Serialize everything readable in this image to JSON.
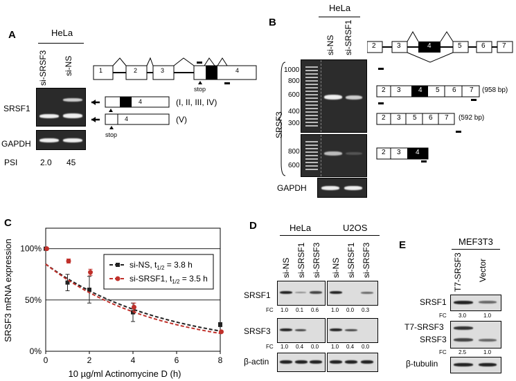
{
  "panelA": {
    "letter": "A",
    "cell": "HeLa",
    "lanes": [
      "si-SRSF3",
      "si-NS"
    ],
    "row1": "SRSF1",
    "row2": "GAPDH",
    "psi_label": "PSI",
    "psi_values": [
      "2.0",
      "45"
    ],
    "isoform1": "(I, II, III, IV)",
    "isoform2": "(V)",
    "stop": "stop",
    "exons": [
      "1",
      "2",
      "3",
      "4"
    ],
    "exon4": "4"
  },
  "panelB": {
    "letter": "B",
    "cell": "HeLa",
    "lanes": [
      "si-NS",
      "si-SRSF1"
    ],
    "row_label": "SRSF3",
    "gapdh": "GAPDH",
    "ladder_top": [
      "1000",
      "800",
      "600",
      "400",
      "300"
    ],
    "ladder_bottom": [
      "800",
      "600"
    ],
    "gene_exons": [
      "2",
      "3",
      "4",
      "5",
      "6",
      "7"
    ],
    "iso_full": [
      "2",
      "3",
      "4",
      "5",
      "6",
      "7"
    ],
    "iso_full_size": "(958 bp)",
    "iso_skip": [
      "2",
      "3",
      "5",
      "6",
      "7"
    ],
    "iso_skip_size": "(592 bp)",
    "iso_short": [
      "2",
      "3",
      "4"
    ]
  },
  "panelC": {
    "letter": "C",
    "chart_data": {
      "type": "line",
      "ylabel": "SRSF3 mRNA expression",
      "xlabel": "10 µg/ml Actinomycine D (h)",
      "x_ticks": [
        "0",
        "2",
        "4",
        "6",
        "8"
      ],
      "y_ticks": [
        "0%",
        "50%",
        "100%"
      ],
      "xlim": [
        0,
        8
      ],
      "ylim": [
        0,
        120
      ],
      "series": [
        {
          "name": "si-NS, t1/2 = 3.8 h",
          "x": [
            0,
            1,
            2,
            4,
            8
          ],
          "y": [
            100,
            67,
            60,
            38,
            26
          ],
          "err": [
            0,
            8,
            13,
            9,
            2
          ],
          "color": "#222222"
        },
        {
          "name": "si-SRSF1, t1/2 = 3.5 h",
          "x": [
            0,
            1,
            2,
            4,
            8
          ],
          "y": [
            100,
            88,
            77,
            43,
            19
          ],
          "err": [
            0,
            2,
            3,
            4,
            1
          ],
          "color": "#c0302a"
        }
      ],
      "legend": [
        {
          "prefix": "si-NS, t",
          "sub": "1/2",
          "suffix": " = 3.8 h"
        },
        {
          "prefix": "si-SRSF1, t",
          "sub": "1/2",
          "suffix": " = 3.5 h"
        }
      ],
      "legend_position": "top-right"
    }
  },
  "panelD": {
    "letter": "D",
    "cells": [
      "HeLa",
      "U2OS"
    ],
    "lanes": [
      "si-NS",
      "si-SRSF1",
      "si-SRSF3"
    ],
    "rows": [
      "SRSF1",
      "SRSF3",
      "β-actin"
    ],
    "fc_label": "FC",
    "fc_srsf1_hela": [
      "1.0",
      "0.1",
      "0.6"
    ],
    "fc_srsf1_u2os": [
      "1.0",
      "0.0",
      "0.3"
    ],
    "fc_srsf3_hela": [
      "1.0",
      "0.4",
      "0.0"
    ],
    "fc_srsf3_u2os": [
      "1.0",
      "0.4",
      "0.0"
    ]
  },
  "panelE": {
    "letter": "E",
    "cell": "MEF3T3",
    "lanes": [
      "T7-SRSF3",
      "Vector"
    ],
    "rows": [
      "SRSF1",
      "T7-SRSF3",
      "SRSF3",
      "β-tubulin"
    ],
    "fc_label": "FC",
    "fc_srsf1": [
      "3.0",
      "1.0"
    ],
    "fc_srsf3": [
      "2.5",
      "1.0"
    ]
  }
}
